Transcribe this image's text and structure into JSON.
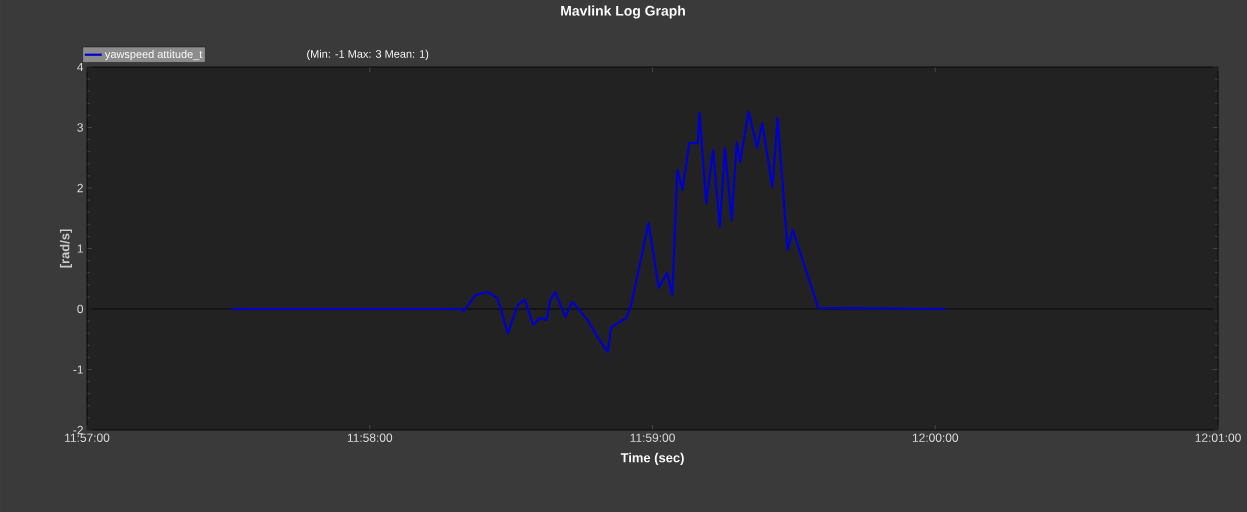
{
  "chart_data": {
    "type": "line",
    "title": "Mavlink Log Graph",
    "xlabel": "Time (sec)",
    "ylabel": "[rad/s]",
    "annotations": [
      "(Min: -1 Max: 3 Mean: 1)"
    ],
    "legend": "top left",
    "x": [
      11.9585,
      11.972,
      11.9722,
      11.9729,
      11.9736,
      11.9742,
      11.9748,
      11.9754,
      11.9758,
      11.9763,
      11.9767,
      11.9771,
      11.9773,
      11.9776,
      11.9782,
      11.9786,
      11.9795,
      11.9802,
      11.9807,
      11.9809,
      11.9818,
      11.9821,
      11.9831,
      11.9837,
      11.9842,
      11.9845,
      11.9848,
      11.9851,
      11.9855,
      11.986,
      11.9861,
      11.9865,
      11.9869,
      11.9873,
      11.9876,
      11.988,
      11.9883,
      11.9885,
      11.989,
      11.9895,
      11.9898,
      11.9904,
      11.9907,
      11.991,
      11.9913,
      11.9916,
      11.9931,
      12.0006
    ],
    "series": [
      {
        "name": "yawspeed attitude_t",
        "color": "#0000cc",
        "values": [
          0,
          0,
          -0.03,
          0.23,
          0.28,
          0.18,
          -0.4,
          0.07,
          0.15,
          -0.26,
          -0.15,
          -0.18,
          0.15,
          0.28,
          -0.13,
          0.12,
          -0.18,
          -0.51,
          -0.71,
          -0.3,
          -0.15,
          0.1,
          1.42,
          0.35,
          0.6,
          0.23,
          2.3,
          1.97,
          2.74,
          2.74,
          3.24,
          1.75,
          2.63,
          1.36,
          2.66,
          1.47,
          2.76,
          2.43,
          3.26,
          2.66,
          3.07,
          2.02,
          3.16,
          2.08,
          0.98,
          1.31,
          0.02,
          0
        ]
      }
    ],
    "ref_lines": [
      {
        "axis": "y",
        "value": 0,
        "color": "#000000"
      }
    ],
    "xlim": [
      11.95,
      12.016667
    ],
    "xticks": [
      {
        "value": 11.95,
        "label": "11:57:00"
      },
      {
        "value": 11.966667,
        "label": "11:58:00"
      },
      {
        "value": 11.983333,
        "label": "11:59:00"
      },
      {
        "value": 12.0,
        "label": "12:00:00"
      },
      {
        "value": 12.016667,
        "label": "12:01:00"
      }
    ],
    "ylim": [
      -2,
      4
    ],
    "yticks": [
      -2,
      -1,
      0,
      1,
      2,
      3,
      4
    ]
  }
}
